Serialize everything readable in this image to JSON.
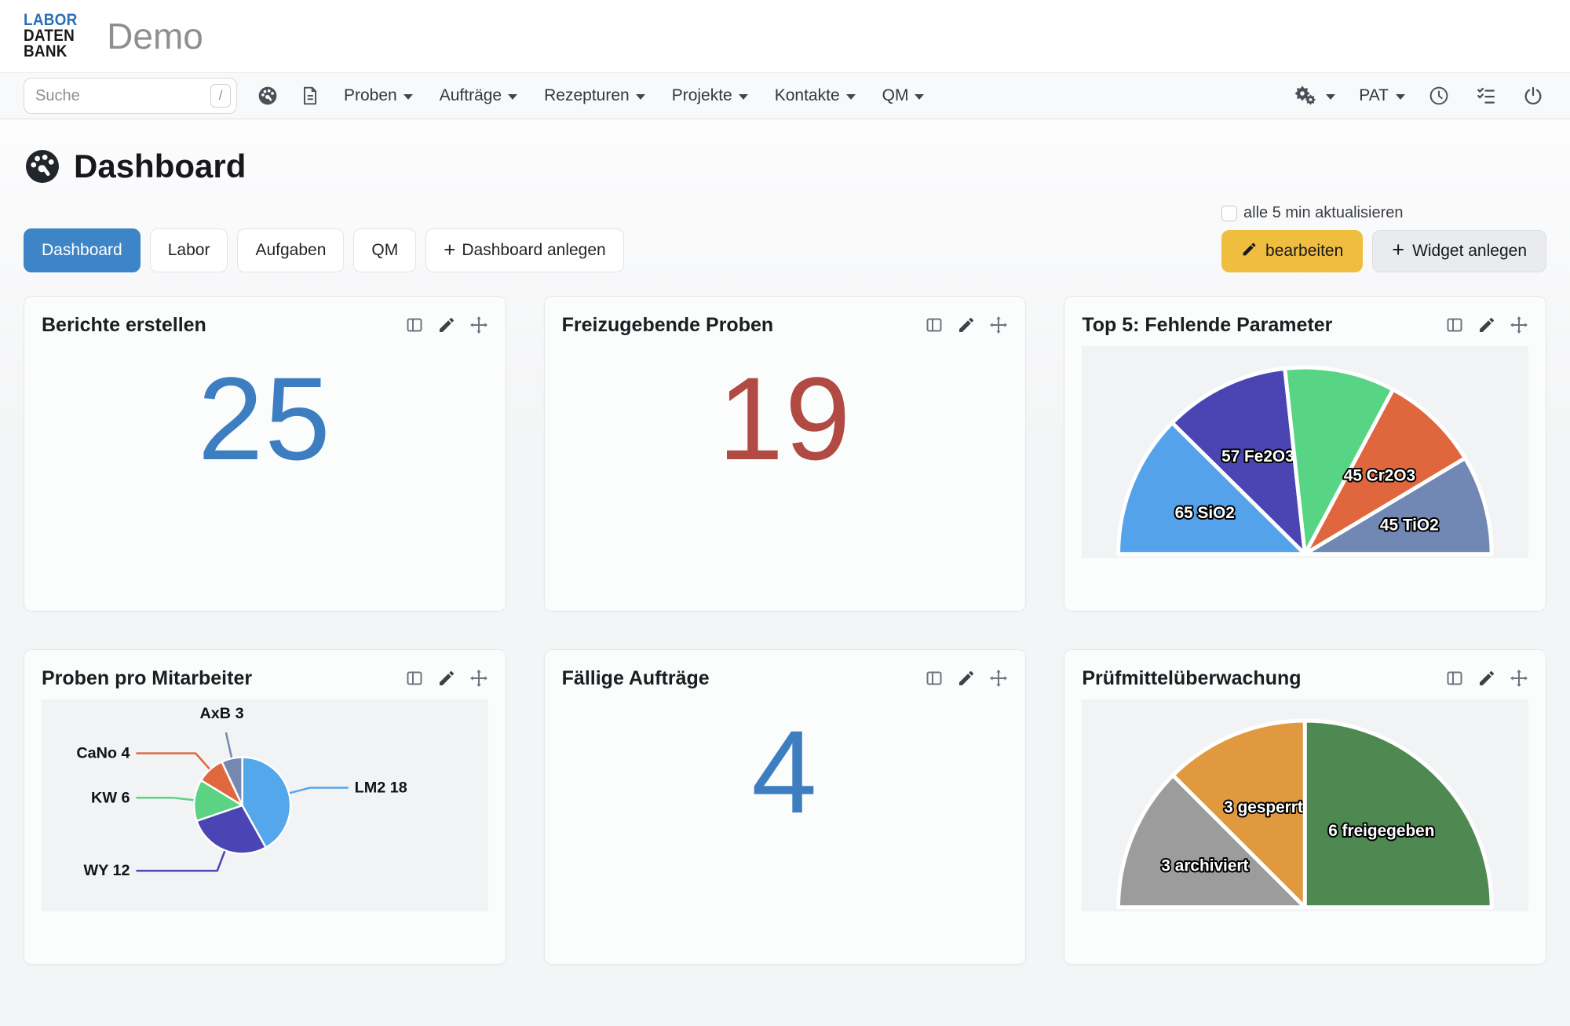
{
  "brand": {
    "logo_lines": [
      "LABOR",
      "DATEN",
      "BANK"
    ],
    "logo_accent_color": "#2a6ebb",
    "app_title": "Demo"
  },
  "navbar": {
    "search": {
      "placeholder": "Suche",
      "shortcut": "/"
    },
    "icons_left": [
      {
        "id": "gauge"
      },
      {
        "id": "document"
      }
    ],
    "menus": [
      {
        "id": "proben",
        "label": "Proben"
      },
      {
        "id": "auftraege",
        "label": "Aufträge"
      },
      {
        "id": "rezepturen",
        "label": "Rezepturen"
      },
      {
        "id": "projekte",
        "label": "Projekte"
      },
      {
        "id": "kontakte",
        "label": "Kontakte"
      },
      {
        "id": "qm",
        "label": "QM"
      }
    ],
    "right_items": [
      {
        "type": "icon-dropdown",
        "id": "settings-gears"
      },
      {
        "type": "user-dropdown",
        "id": "user",
        "label": "PAT"
      },
      {
        "type": "icon",
        "id": "clock"
      },
      {
        "type": "icon",
        "id": "tasks-checklist"
      },
      {
        "type": "icon",
        "id": "power"
      }
    ]
  },
  "page": {
    "title": "Dashboard"
  },
  "tabs": [
    {
      "id": "dashboard",
      "label": "Dashboard",
      "active": true
    },
    {
      "id": "labor",
      "label": "Labor"
    },
    {
      "id": "aufgaben",
      "label": "Aufgaben"
    },
    {
      "id": "qm",
      "label": "QM"
    },
    {
      "id": "dashboard-anlegen",
      "label": "Dashboard anlegen",
      "icon": "plus"
    }
  ],
  "controls": {
    "auto_refresh_label": "alle 5 min aktualisieren",
    "auto_refresh_checked": false,
    "edit_button": "bearbeiten",
    "add_widget_button": "Widget anlegen"
  },
  "widget_actions": [
    {
      "id": "columns"
    },
    {
      "id": "edit"
    },
    {
      "id": "move"
    }
  ],
  "widgets": [
    {
      "id": "berichte-erstellen",
      "title": "Berichte erstellen",
      "type": "number",
      "value": "25",
      "color": "#3d7ec1"
    },
    {
      "id": "freizugebende-proben",
      "title": "Freizugebende Proben",
      "type": "number",
      "value": "19",
      "color": "#b04a42"
    },
    {
      "id": "top5-fehlende-parameter",
      "title": "Top 5: Fehlende Parameter",
      "type": "half_pie",
      "chart_index": 0
    },
    {
      "id": "proben-pro-mitarbeiter",
      "title": "Proben pro Mitarbeiter",
      "type": "pie",
      "chart_index": 1
    },
    {
      "id": "faellige-auftraege",
      "title": "Fällige Aufträge",
      "type": "number",
      "value": "4",
      "color": "#3d7ec1"
    },
    {
      "id": "pruefmittelueberwachung",
      "title": "Prüfmittelüberwachung",
      "type": "half_pie",
      "chart_index": 2
    }
  ],
  "chart_data": [
    {
      "type": "pie",
      "variant": "half",
      "title": "Top 5: Fehlende Parameter",
      "legend_position": "none",
      "slices": [
        {
          "label": "65 SiO2",
          "value": 65,
          "color": "#54a3ea"
        },
        {
          "label": "57 Fe2O3",
          "value": 57,
          "color": "#4a45b2"
        },
        {
          "label": "",
          "value": 50,
          "color": "#58d584"
        },
        {
          "label": "45 Cr2O3",
          "value": 45,
          "color": "#e0663e"
        },
        {
          "label": "45 TiO2",
          "value": 45,
          "color": "#7187b4"
        }
      ]
    },
    {
      "type": "pie",
      "variant": "full",
      "title": "Proben pro Mitarbeiter",
      "legend_position": "outside-labels",
      "slices": [
        {
          "label": "LM2 18",
          "value": 18,
          "color": "#55a7eb"
        },
        {
          "label": "WY 12",
          "value": 12,
          "color": "#4945b5"
        },
        {
          "label": "KW 6",
          "value": 6,
          "color": "#5cd283"
        },
        {
          "label": "CaNo 4",
          "value": 4,
          "color": "#e0673e"
        },
        {
          "label": "AxB 3",
          "value": 3,
          "color": "#7488b0"
        }
      ]
    },
    {
      "type": "pie",
      "variant": "half",
      "title": "Prüfmittelüberwachung",
      "legend_position": "none",
      "slices": [
        {
          "label": "3 archiviert",
          "value": 3,
          "color": "#9c9c9c"
        },
        {
          "label": "3 gesperrt",
          "value": 3,
          "color": "#e1993f"
        },
        {
          "label": "6 freigegeben",
          "value": 6,
          "color": "#4d8950"
        }
      ]
    }
  ]
}
